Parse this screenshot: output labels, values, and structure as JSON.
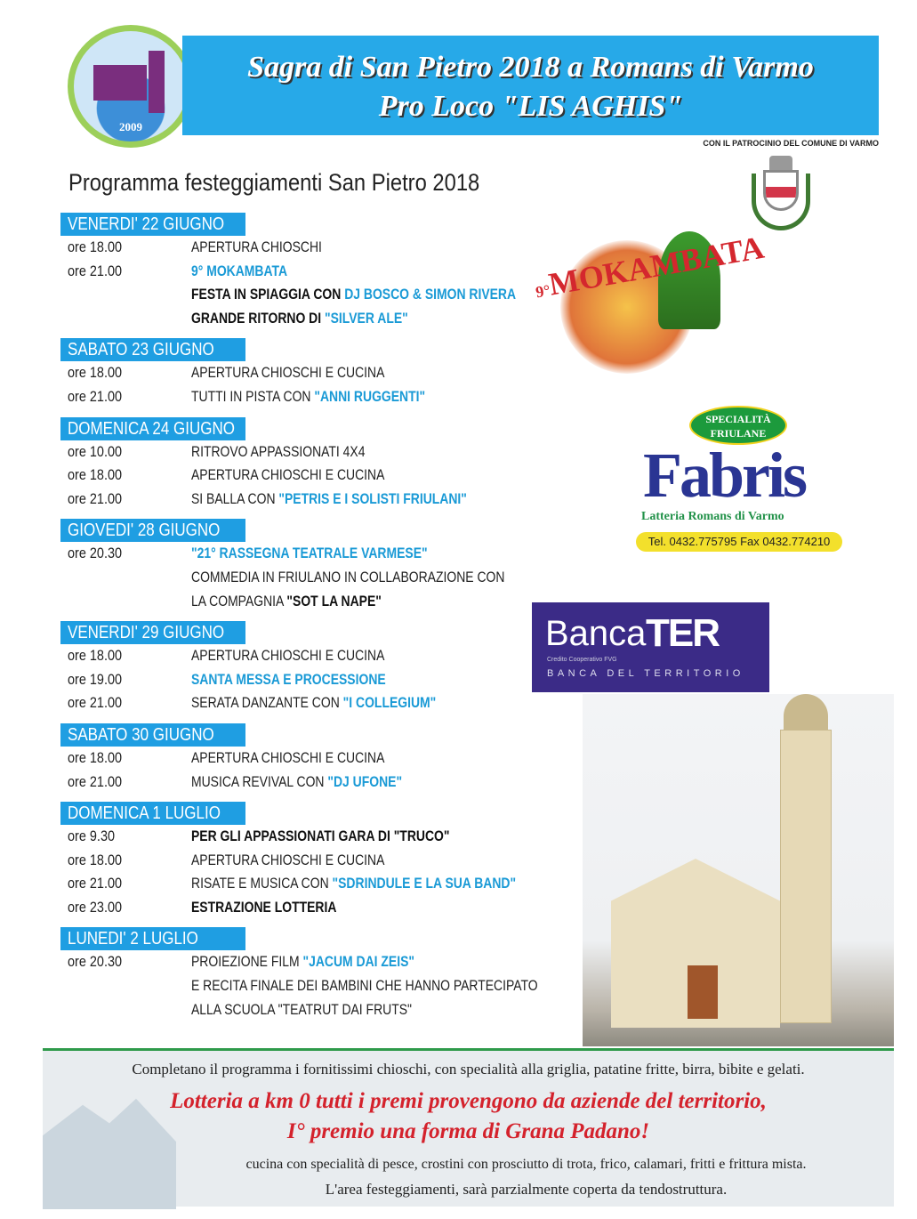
{
  "header": {
    "logo": {
      "year": "2009"
    },
    "title_line1": "Sagra di San Pietro 2018 a Romans di Varmo",
    "title_line2": "Pro Loco \"LIS AGHIS\"",
    "patronage": "CON IL PATROCINIO DEL COMUNE DI VARMO"
  },
  "program_title": "Programma festeggiamenti San Pietro 2018",
  "days": [
    {
      "label": "VENERDI' 22 GIUGNO",
      "rows": [
        {
          "time": "ore 18.00",
          "segs": [
            {
              "t": "APERTURA CHIOSCHI",
              "s": "n"
            }
          ]
        },
        {
          "time": "ore 21.00",
          "segs": [
            {
              "t": "9° MOKAMBATA",
              "s": "c"
            }
          ]
        },
        {
          "time": "",
          "segs": [
            {
              "t": "FESTA IN SPIAGGIA CON ",
              "s": "b"
            },
            {
              "t": "DJ BOSCO & SIMON RIVERA",
              "s": "c"
            }
          ]
        },
        {
          "time": "",
          "segs": [
            {
              "t": "GRANDE RITORNO DI ",
              "s": "b"
            },
            {
              "t": "\"SILVER ALE\"",
              "s": "c"
            }
          ]
        }
      ]
    },
    {
      "label": "SABATO 23 GIUGNO",
      "rows": [
        {
          "time": "ore 18.00",
          "segs": [
            {
              "t": "APERTURA CHIOSCHI E CUCINA",
              "s": "n"
            }
          ]
        },
        {
          "time": "ore 21.00",
          "segs": [
            {
              "t": "TUTTI IN PISTA CON ",
              "s": "n"
            },
            {
              "t": "\"ANNI RUGGENTI\"",
              "s": "c"
            }
          ]
        }
      ]
    },
    {
      "label": "DOMENICA 24 GIUGNO",
      "rows": [
        {
          "time": "ore 10.00",
          "segs": [
            {
              "t": "RITROVO APPASSIONATI 4X4",
              "s": "n"
            }
          ]
        },
        {
          "time": "ore 18.00",
          "segs": [
            {
              "t": "APERTURA CHIOSCHI E CUCINA",
              "s": "n"
            }
          ]
        },
        {
          "time": "ore 21.00",
          "segs": [
            {
              "t": "SI BALLA CON ",
              "s": "n"
            },
            {
              "t": "\"PETRIS E I SOLISTI FRIULANI\"",
              "s": "c"
            }
          ]
        }
      ]
    },
    {
      "label": "GIOVEDI' 28 GIUGNO",
      "rows": [
        {
          "time": "ore 20.30",
          "segs": [
            {
              "t": "\"21° RASSEGNA TEATRALE VARMESE\"",
              "s": "c"
            }
          ]
        },
        {
          "time": "",
          "segs": [
            {
              "t": "COMMEDIA IN FRIULANO IN COLLABORAZIONE CON",
              "s": "n"
            }
          ]
        },
        {
          "time": "",
          "segs": [
            {
              "t": "LA COMPAGNIA ",
              "s": "n"
            },
            {
              "t": "\"SOT LA NAPE\"",
              "s": "b"
            }
          ]
        }
      ]
    },
    {
      "label": "VENERDI' 29 GIUGNO",
      "rows": [
        {
          "time": "ore 18.00",
          "segs": [
            {
              "t": "APERTURA CHIOSCHI E CUCINA",
              "s": "n"
            }
          ]
        },
        {
          "time": "ore 19.00",
          "segs": [
            {
              "t": "SANTA MESSA E PROCESSIONE",
              "s": "c"
            }
          ]
        },
        {
          "time": "ore 21.00",
          "segs": [
            {
              "t": "SERATA DANZANTE CON ",
              "s": "n"
            },
            {
              "t": "\"I COLLEGIUM\"",
              "s": "c"
            }
          ]
        }
      ]
    },
    {
      "label": "SABATO 30 GIUGNO",
      "rows": [
        {
          "time": "ore 18.00",
          "segs": [
            {
              "t": "APERTURA CHIOSCHI E CUCINA",
              "s": "n"
            }
          ]
        },
        {
          "time": "ore 21.00",
          "segs": [
            {
              "t": "MUSICA REVIVAL CON ",
              "s": "n"
            },
            {
              "t": "\"DJ UFONE\"",
              "s": "c"
            }
          ]
        }
      ]
    },
    {
      "label": "DOMENICA 1 LUGLIO",
      "rows": [
        {
          "time": "ore 9.30",
          "segs": [
            {
              "t": "PER GLI APPASSIONATI GARA DI \"TRUCO\"",
              "s": "b"
            }
          ]
        },
        {
          "time": "ore 18.00",
          "segs": [
            {
              "t": "APERTURA CHIOSCHI E CUCINA",
              "s": "n"
            }
          ]
        },
        {
          "time": "ore 21.00",
          "segs": [
            {
              "t": "RISATE E MUSICA CON ",
              "s": "n"
            },
            {
              "t": "\"SDRINDULE E LA SUA BAND\"",
              "s": "c"
            }
          ]
        },
        {
          "time": "ore 23.00",
          "segs": [
            {
              "t": "ESTRAZIONE LOTTERIA",
              "s": "b"
            }
          ]
        }
      ]
    },
    {
      "label": "LUNEDI' 2 LUGLIO",
      "rows": [
        {
          "time": "ore 20.30",
          "segs": [
            {
              "t": "PROIEZIONE FILM ",
              "s": "n"
            },
            {
              "t": "\"JACUM DAI ZEIS\"",
              "s": "c"
            }
          ]
        },
        {
          "time": "",
          "segs": [
            {
              "t": "E RECITA FINALE DEI BAMBINI CHE HANNO PARTECIPATO",
              "s": "n"
            }
          ]
        },
        {
          "time": "",
          "segs": [
            {
              "t": "ALLA SCUOLA \"TEATRUT DAI FRUTS\"",
              "s": "n"
            }
          ]
        }
      ]
    }
  ],
  "sponsors": {
    "mokambata": {
      "prefix": "9°",
      "name": "MOKAMBATA"
    },
    "fabris": {
      "badge_line1": "SPECIALITÀ",
      "badge_line2": "FRIULANE",
      "name": "Fabris",
      "subtitle": "Latteria Romans di Varmo",
      "contact": "Tel. 0432.775795  Fax 0432.774210"
    },
    "banca": {
      "name": "Banca",
      "brand": "TER",
      "tagline": "Credito Cooperativo FVG",
      "subtitle": "BANCA DEL TERRITORIO"
    }
  },
  "footer": {
    "line1": "Completano il programma i fornitissimi chioschi, con specialità alla griglia, patatine fritte, birra, bibite e gelati.",
    "lottery_line1": "Lotteria a km 0 tutti i premi provengono da aziende del territorio,",
    "lottery_line2": "I° premio una forma di Grana Padano!",
    "line4": "cucina con specialità di pesce, crostini con prosciutto di trota, frico, calamari, fritti e frittura mista.",
    "line5": "L'area festeggiamenti, sarà parzialmente coperta da tendostruttura."
  },
  "colors": {
    "banner": "#27a9e8",
    "day_header": "#1f9ee2",
    "highlight": "#1a9ad6",
    "lottery": "#d4222c",
    "footer_rule": "#2e9a4a"
  }
}
